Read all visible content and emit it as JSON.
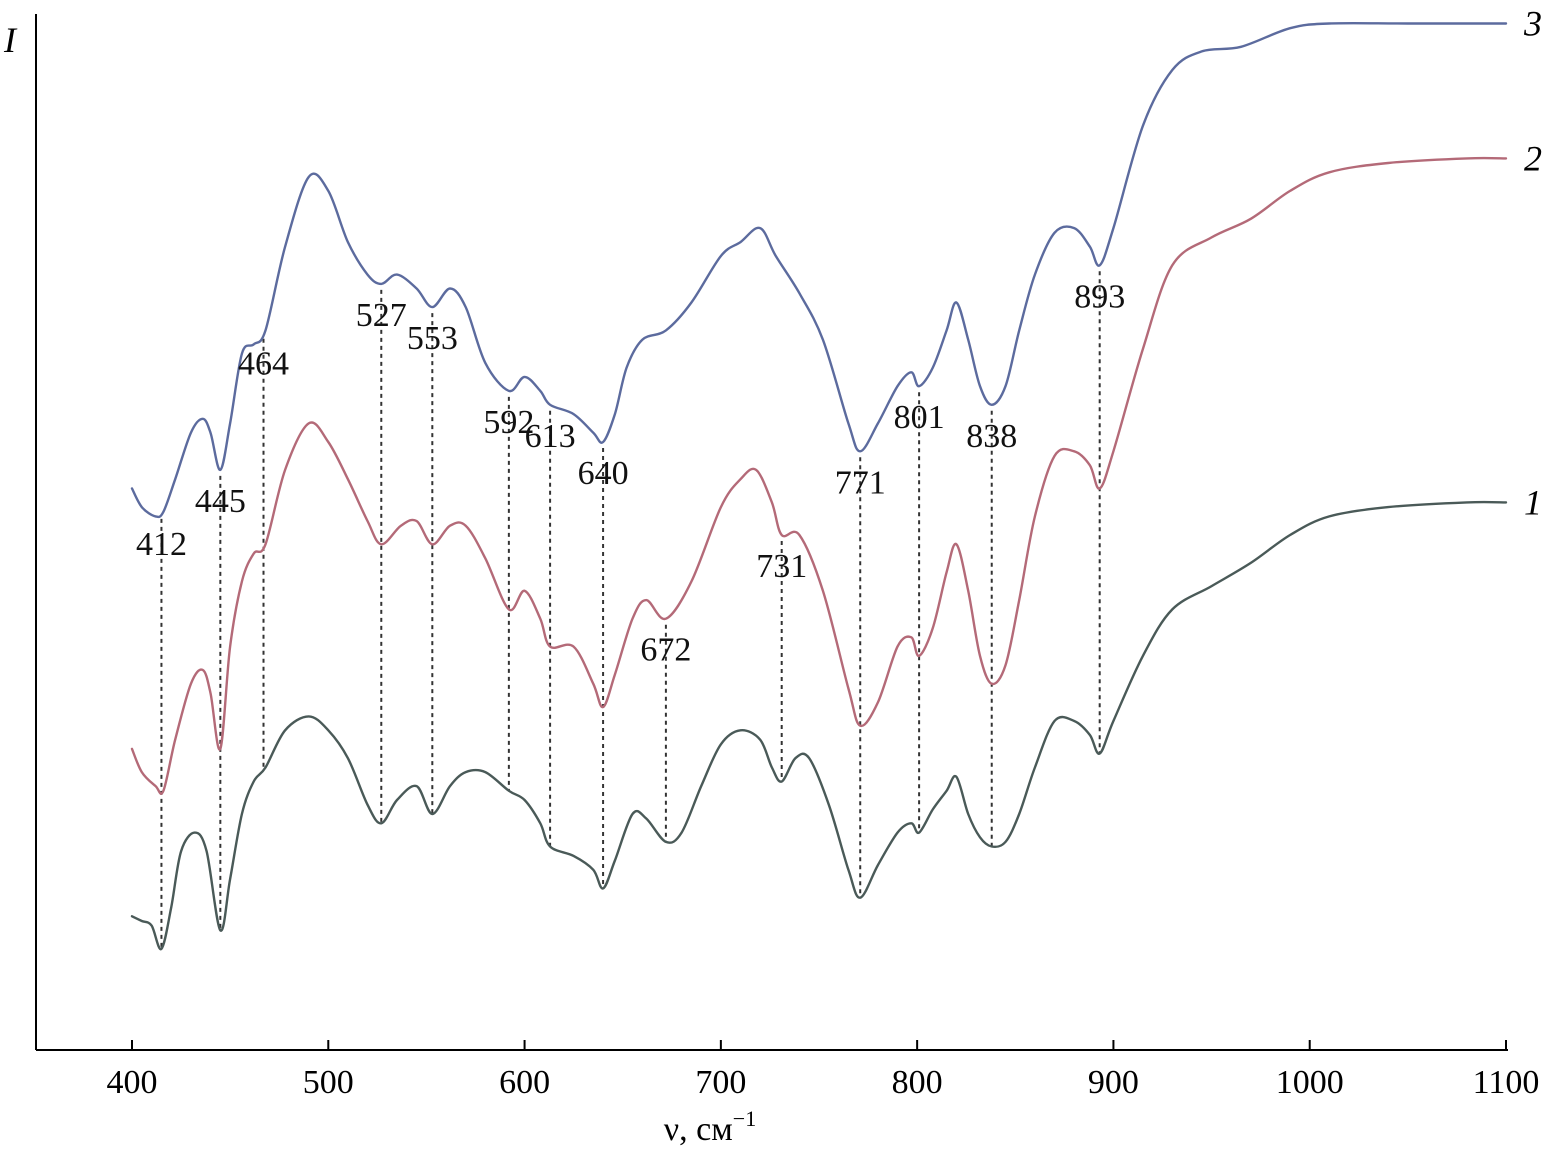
{
  "chart_data": {
    "type": "line",
    "xlabel": "ν, см",
    "xlabel_sup": "−1",
    "ylabel": "I",
    "xlim": [
      350,
      1105
    ],
    "x_ticks": [
      400,
      500,
      600,
      700,
      800,
      900,
      1000,
      1100
    ],
    "grid": false,
    "legend": "none",
    "series": [
      {
        "name": "1",
        "color": "#4a5a58",
        "values": [
          [
            400,
            0.09
          ],
          [
            405,
            0.085
          ],
          [
            410,
            0.08
          ],
          [
            415,
            0.055
          ],
          [
            420,
            0.1
          ],
          [
            425,
            0.16
          ],
          [
            432,
            0.18
          ],
          [
            438,
            0.16
          ],
          [
            445,
            0.075
          ],
          [
            450,
            0.13
          ],
          [
            456,
            0.2
          ],
          [
            462,
            0.235
          ],
          [
            468,
            0.25
          ],
          [
            478,
            0.29
          ],
          [
            490,
            0.305
          ],
          [
            500,
            0.29
          ],
          [
            510,
            0.26
          ],
          [
            520,
            0.21
          ],
          [
            527,
            0.19
          ],
          [
            535,
            0.215
          ],
          [
            545,
            0.23
          ],
          [
            553,
            0.2
          ],
          [
            562,
            0.23
          ],
          [
            570,
            0.245
          ],
          [
            580,
            0.245
          ],
          [
            592,
            0.225
          ],
          [
            600,
            0.215
          ],
          [
            608,
            0.19
          ],
          [
            613,
            0.165
          ],
          [
            625,
            0.155
          ],
          [
            635,
            0.14
          ],
          [
            640,
            0.12
          ],
          [
            646,
            0.15
          ],
          [
            655,
            0.2
          ],
          [
            662,
            0.195
          ],
          [
            672,
            0.17
          ],
          [
            680,
            0.18
          ],
          [
            690,
            0.23
          ],
          [
            700,
            0.275
          ],
          [
            710,
            0.29
          ],
          [
            720,
            0.28
          ],
          [
            726,
            0.25
          ],
          [
            731,
            0.235
          ],
          [
            738,
            0.26
          ],
          [
            745,
            0.26
          ],
          [
            755,
            0.21
          ],
          [
            765,
            0.14
          ],
          [
            771,
            0.11
          ],
          [
            780,
            0.145
          ],
          [
            790,
            0.18
          ],
          [
            797,
            0.19
          ],
          [
            801,
            0.18
          ],
          [
            808,
            0.205
          ],
          [
            815,
            0.225
          ],
          [
            820,
            0.24
          ],
          [
            826,
            0.2
          ],
          [
            832,
            0.175
          ],
          [
            838,
            0.165
          ],
          [
            845,
            0.17
          ],
          [
            852,
            0.2
          ],
          [
            860,
            0.25
          ],
          [
            870,
            0.3
          ],
          [
            880,
            0.3
          ],
          [
            888,
            0.285
          ],
          [
            893,
            0.265
          ],
          [
            900,
            0.3
          ],
          [
            915,
            0.37
          ],
          [
            930,
            0.42
          ],
          [
            950,
            0.445
          ],
          [
            970,
            0.47
          ],
          [
            990,
            0.5
          ],
          [
            1010,
            0.52
          ],
          [
            1040,
            0.53
          ],
          [
            1080,
            0.535
          ],
          [
            1100,
            0.535
          ]
        ]
      },
      {
        "name": "2",
        "color": "#b46a78",
        "values": [
          [
            400,
            0.27
          ],
          [
            405,
            0.245
          ],
          [
            412,
            0.23
          ],
          [
            416,
            0.225
          ],
          [
            422,
            0.28
          ],
          [
            430,
            0.34
          ],
          [
            436,
            0.355
          ],
          [
            440,
            0.33
          ],
          [
            445,
            0.27
          ],
          [
            450,
            0.38
          ],
          [
            456,
            0.45
          ],
          [
            462,
            0.48
          ],
          [
            468,
            0.49
          ],
          [
            478,
            0.57
          ],
          [
            490,
            0.62
          ],
          [
            500,
            0.6
          ],
          [
            510,
            0.56
          ],
          [
            520,
            0.515
          ],
          [
            527,
            0.49
          ],
          [
            537,
            0.51
          ],
          [
            545,
            0.515
          ],
          [
            553,
            0.49
          ],
          [
            562,
            0.51
          ],
          [
            570,
            0.51
          ],
          [
            580,
            0.475
          ],
          [
            592,
            0.42
          ],
          [
            600,
            0.44
          ],
          [
            608,
            0.41
          ],
          [
            613,
            0.38
          ],
          [
            625,
            0.38
          ],
          [
            635,
            0.34
          ],
          [
            640,
            0.315
          ],
          [
            646,
            0.35
          ],
          [
            655,
            0.41
          ],
          [
            662,
            0.43
          ],
          [
            672,
            0.41
          ],
          [
            685,
            0.45
          ],
          [
            700,
            0.53
          ],
          [
            710,
            0.56
          ],
          [
            718,
            0.57
          ],
          [
            726,
            0.535
          ],
          [
            731,
            0.5
          ],
          [
            740,
            0.5
          ],
          [
            752,
            0.44
          ],
          [
            765,
            0.335
          ],
          [
            771,
            0.295
          ],
          [
            780,
            0.32
          ],
          [
            790,
            0.38
          ],
          [
            797,
            0.39
          ],
          [
            801,
            0.37
          ],
          [
            808,
            0.4
          ],
          [
            815,
            0.46
          ],
          [
            820,
            0.49
          ],
          [
            826,
            0.44
          ],
          [
            832,
            0.37
          ],
          [
            838,
            0.34
          ],
          [
            845,
            0.36
          ],
          [
            852,
            0.43
          ],
          [
            860,
            0.52
          ],
          [
            870,
            0.585
          ],
          [
            880,
            0.59
          ],
          [
            888,
            0.575
          ],
          [
            893,
            0.55
          ],
          [
            900,
            0.59
          ],
          [
            915,
            0.7
          ],
          [
            930,
            0.79
          ],
          [
            950,
            0.82
          ],
          [
            970,
            0.84
          ],
          [
            990,
            0.87
          ],
          [
            1010,
            0.89
          ],
          [
            1040,
            0.9
          ],
          [
            1080,
            0.905
          ],
          [
            1100,
            0.905
          ]
        ]
      },
      {
        "name": "3",
        "color": "#5c6b9e",
        "values": [
          [
            400,
            0.55
          ],
          [
            405,
            0.53
          ],
          [
            412,
            0.52
          ],
          [
            416,
            0.525
          ],
          [
            422,
            0.56
          ],
          [
            430,
            0.61
          ],
          [
            436,
            0.625
          ],
          [
            440,
            0.61
          ],
          [
            445,
            0.57
          ],
          [
            450,
            0.62
          ],
          [
            456,
            0.695
          ],
          [
            462,
            0.705
          ],
          [
            468,
            0.72
          ],
          [
            478,
            0.81
          ],
          [
            490,
            0.885
          ],
          [
            500,
            0.87
          ],
          [
            510,
            0.815
          ],
          [
            520,
            0.78
          ],
          [
            527,
            0.77
          ],
          [
            535,
            0.78
          ],
          [
            545,
            0.765
          ],
          [
            553,
            0.745
          ],
          [
            562,
            0.765
          ],
          [
            570,
            0.745
          ],
          [
            580,
            0.685
          ],
          [
            592,
            0.655
          ],
          [
            600,
            0.67
          ],
          [
            608,
            0.655
          ],
          [
            613,
            0.64
          ],
          [
            625,
            0.63
          ],
          [
            635,
            0.61
          ],
          [
            640,
            0.6
          ],
          [
            646,
            0.63
          ],
          [
            652,
            0.68
          ],
          [
            660,
            0.71
          ],
          [
            672,
            0.72
          ],
          [
            685,
            0.75
          ],
          [
            700,
            0.8
          ],
          [
            710,
            0.815
          ],
          [
            720,
            0.83
          ],
          [
            728,
            0.8
          ],
          [
            740,
            0.76
          ],
          [
            752,
            0.71
          ],
          [
            765,
            0.62
          ],
          [
            771,
            0.59
          ],
          [
            780,
            0.62
          ],
          [
            790,
            0.66
          ],
          [
            797,
            0.675
          ],
          [
            801,
            0.66
          ],
          [
            808,
            0.68
          ],
          [
            815,
            0.72
          ],
          [
            820,
            0.75
          ],
          [
            826,
            0.71
          ],
          [
            832,
            0.66
          ],
          [
            838,
            0.64
          ],
          [
            845,
            0.66
          ],
          [
            852,
            0.72
          ],
          [
            860,
            0.78
          ],
          [
            870,
            0.825
          ],
          [
            880,
            0.83
          ],
          [
            888,
            0.81
          ],
          [
            893,
            0.79
          ],
          [
            900,
            0.83
          ],
          [
            915,
            0.94
          ],
          [
            930,
            1.0
          ],
          [
            945,
            1.02
          ],
          [
            965,
            1.025
          ],
          [
            990,
            1.045
          ],
          [
            1010,
            1.05
          ],
          [
            1050,
            1.05
          ],
          [
            1100,
            1.05
          ]
        ]
      }
    ],
    "annotations": [
      {
        "text": "412",
        "x": 415,
        "from_series": 2,
        "to_series": 0
      },
      {
        "text": "445",
        "x": 445,
        "from_series": 2,
        "to_series": 0
      },
      {
        "text": "464",
        "x": 467,
        "from_series": 2,
        "to_series": 0
      },
      {
        "text": "527",
        "x": 527,
        "from_series": 2,
        "to_series": 0
      },
      {
        "text": "553",
        "x": 553,
        "from_series": 2,
        "to_series": 0
      },
      {
        "text": "592",
        "x": 592,
        "from_series": 2,
        "to_series": 0
      },
      {
        "text": "613",
        "x": 613,
        "from_series": 2,
        "to_series": 0
      },
      {
        "text": "640",
        "x": 640,
        "from_series": 2,
        "to_series": 0
      },
      {
        "text": "672",
        "x": 672,
        "from_series": 1,
        "to_series": 0
      },
      {
        "text": "731",
        "x": 731,
        "from_series": 1,
        "to_series": 0
      },
      {
        "text": "771",
        "x": 771,
        "from_series": 2,
        "to_series": 0
      },
      {
        "text": "801",
        "x": 801,
        "from_series": 2,
        "to_series": 0
      },
      {
        "text": "838",
        "x": 838,
        "from_series": 2,
        "to_series": 0
      },
      {
        "text": "893",
        "x": 893,
        "from_series": 2,
        "to_series": 0
      }
    ]
  }
}
